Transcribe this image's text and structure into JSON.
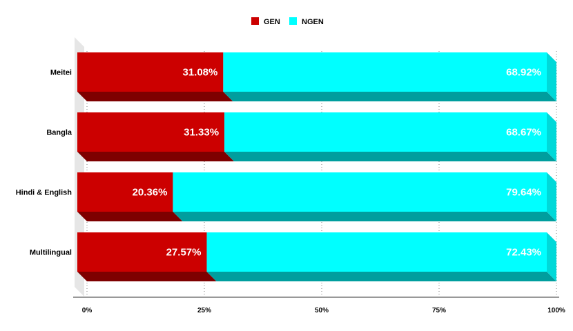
{
  "chart_data": {
    "type": "bar",
    "orientation": "horizontal",
    "stacked": "percent",
    "style": "3d",
    "legend_position": "top-center",
    "grid": true,
    "categories": [
      "Meitei",
      "Bangla",
      "Hindi & English",
      "Multilingual"
    ],
    "series": [
      {
        "name": "GEN",
        "color": "#cc0000",
        "values": [
          31.08,
          31.33,
          20.36,
          27.57
        ],
        "labels": [
          "31.08%",
          "31.33%",
          "20.36%",
          "27.57%"
        ]
      },
      {
        "name": "NGEN",
        "color": "#00ffff",
        "values": [
          68.92,
          68.67,
          79.64,
          72.43
        ],
        "labels": [
          "68.92%",
          "68.67%",
          "79.64%",
          "72.43%"
        ]
      }
    ],
    "xlim": [
      0,
      100
    ],
    "x_ticks": [
      0,
      25,
      50,
      75,
      100
    ],
    "x_tick_labels": [
      "0%",
      "25%",
      "50%",
      "75%",
      "100%"
    ],
    "title": "",
    "xlabel": "",
    "ylabel": ""
  }
}
